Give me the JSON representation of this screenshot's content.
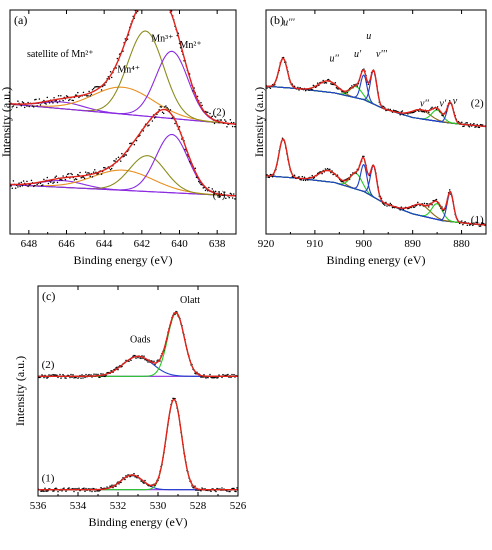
{
  "chart_data": [
    {
      "panel": "(a)",
      "type": "line",
      "xlabel": "Binding energy (eV)",
      "ylabel": "Intensity (a.u.)",
      "xlim": [
        649,
        637
      ],
      "xticks": [
        648,
        646,
        644,
        642,
        640,
        638
      ],
      "ylim": [
        0,
        1
      ],
      "grid": false,
      "sample_labels": [
        {
          "text": "(2)",
          "x": 637.9,
          "y": 0.53
        },
        {
          "text": "(1)",
          "x": 637.9,
          "y": 0.16
        }
      ],
      "annotations": [
        {
          "text": "satellite of Mn²⁺",
          "x": 648.1,
          "y": 0.79
        },
        {
          "text": "Mn⁴⁺",
          "x": 643.3,
          "y": 0.72
        },
        {
          "text": "Mn³⁺",
          "x": 641.5,
          "y": 0.86
        },
        {
          "text": "Mn²⁺",
          "x": 640.0,
          "y": 0.83
        }
      ],
      "stacks": [
        {
          "id": "(2)",
          "baseline_left": 0.58,
          "baseline_right": 0.49,
          "components": [
            {
              "role": "satellite",
              "center": 646.2,
              "width": 1.1,
              "height": 0.03,
              "color": "#8B2BE2"
            },
            {
              "role": "Mn4+",
              "center": 643.0,
              "width": 1.6,
              "height": 0.12,
              "color": "#E8901F"
            },
            {
              "role": "Mn3+",
              "center": 641.8,
              "width": 0.95,
              "height": 0.38,
              "color": "#8C8C1E"
            },
            {
              "role": "Mn2+",
              "center": 640.4,
              "width": 0.85,
              "height": 0.3,
              "color": "#8B2BE2"
            }
          ]
        },
        {
          "id": "(1)",
          "baseline_left": 0.22,
          "baseline_right": 0.17,
          "components": [
            {
              "role": "satellite",
              "center": 646.2,
              "width": 1.1,
              "height": 0.03,
              "color": "#8B2BE2"
            },
            {
              "role": "Mn4+",
              "center": 643.0,
              "width": 1.6,
              "height": 0.09,
              "color": "#E8901F"
            },
            {
              "role": "Mn3+",
              "center": 641.7,
              "width": 0.95,
              "height": 0.16,
              "color": "#8C8C1E"
            },
            {
              "role": "Mn2+",
              "center": 640.4,
              "width": 0.85,
              "height": 0.26,
              "color": "#8B2BE2"
            }
          ]
        }
      ],
      "colors": {
        "raw": "#000000",
        "envelope": "#E0221A",
        "background": "#8B2BE2"
      }
    },
    {
      "panel": "(b)",
      "type": "line",
      "xlabel": "Binding energy (eV)",
      "ylabel": "Intensity (a.u.)",
      "xlim": [
        920,
        875
      ],
      "xticks": [
        920,
        910,
        900,
        890,
        880
      ],
      "ylim": [
        0,
        1
      ],
      "grid": false,
      "sample_labels": [
        {
          "text": "(2)",
          "x": 876.8,
          "y": 0.57
        },
        {
          "text": "(1)",
          "x": 876.8,
          "y": 0.05
        }
      ],
      "annotations": [
        {
          "text": "u'''",
          "x": 916.5,
          "y": 0.93
        },
        {
          "text": "u''",
          "x": 907.0,
          "y": 0.77
        },
        {
          "text": "u'",
          "x": 902.0,
          "y": 0.79
        },
        {
          "text": "u",
          "x": 899.5,
          "y": 0.87
        },
        {
          "text": "v'''",
          "x": 897.5,
          "y": 0.79
        },
        {
          "text": "v''",
          "x": 888.5,
          "y": 0.57
        },
        {
          "text": "v'",
          "x": 884.5,
          "y": 0.57
        },
        {
          "text": "v",
          "x": 881.8,
          "y": 0.58
        }
      ],
      "stacks": [
        {
          "id": "(2)",
          "baseline": [
            [
              920,
              0.66
            ],
            [
              914,
              0.65
            ],
            [
              906,
              0.63
            ],
            [
              900,
              0.6
            ],
            [
              896,
              0.56
            ],
            [
              890,
              0.52
            ],
            [
              884,
              0.5
            ],
            [
              880,
              0.49
            ],
            [
              875,
              0.48
            ]
          ],
          "components": [
            {
              "role": "u'''",
              "center": 916.5,
              "width": 0.85,
              "height": 0.13,
              "color": "#2E8B2E"
            },
            {
              "role": "u''",
              "center": 907.3,
              "width": 1.9,
              "height": 0.05,
              "color": "#8B6914"
            },
            {
              "role": "u'",
              "center": 901.6,
              "width": 1.2,
              "height": 0.05,
              "color": "#22CC22"
            },
            {
              "role": "u",
              "center": 900.0,
              "width": 0.65,
              "height": 0.11,
              "color": "#1F3FCC"
            },
            {
              "role": "v'''",
              "center": 898.0,
              "width": 0.65,
              "height": 0.15,
              "color": "#1F3FCC"
            },
            {
              "role": "v''",
              "center": 888.4,
              "width": 1.9,
              "height": 0.04,
              "color": "#8B6914"
            },
            {
              "role": "v'",
              "center": 885.0,
              "width": 1.1,
              "height": 0.05,
              "color": "#22CC22"
            },
            {
              "role": "v",
              "center": 882.3,
              "width": 0.65,
              "height": 0.09,
              "color": "#1F3FCC"
            }
          ]
        },
        {
          "id": "(1)",
          "baseline": [
            [
              920,
              0.26
            ],
            [
              914,
              0.25
            ],
            [
              906,
              0.23
            ],
            [
              900,
              0.19
            ],
            [
              896,
              0.14
            ],
            [
              890,
              0.09
            ],
            [
              884,
              0.06
            ],
            [
              880,
              0.05
            ],
            [
              875,
              0.04
            ]
          ],
          "components": [
            {
              "role": "u'''",
              "center": 916.5,
              "width": 0.85,
              "height": 0.17,
              "color": "#2E8B2E"
            },
            {
              "role": "u''",
              "center": 907.3,
              "width": 1.9,
              "height": 0.05,
              "color": "#8B6914"
            },
            {
              "role": "u'",
              "center": 901.6,
              "width": 1.2,
              "height": 0.07,
              "color": "#22CC22"
            },
            {
              "role": "u",
              "center": 900.0,
              "width": 0.65,
              "height": 0.12,
              "color": "#1F3FCC"
            },
            {
              "role": "v'''",
              "center": 898.0,
              "width": 0.65,
              "height": 0.14,
              "color": "#1F3FCC"
            },
            {
              "role": "v''",
              "center": 888.4,
              "width": 1.9,
              "height": 0.05,
              "color": "#8B6914"
            },
            {
              "role": "v'",
              "center": 885.0,
              "width": 1.1,
              "height": 0.07,
              "color": "#22CC22"
            },
            {
              "role": "v",
              "center": 882.3,
              "width": 0.65,
              "height": 0.13,
              "color": "#1F3FCC"
            }
          ]
        }
      ],
      "colors": {
        "raw": "#000000",
        "envelope": "#E0221A",
        "background": "#7B2BC8"
      }
    },
    {
      "panel": "(c)",
      "type": "line",
      "xlabel": "Binding energy (eV)",
      "ylabel": "Intensity (a.u.)",
      "xlim": [
        536,
        526
      ],
      "xticks": [
        536,
        534,
        532,
        530,
        528,
        526
      ],
      "ylim": [
        0,
        1
      ],
      "grid": false,
      "sample_labels": [
        {
          "text": "(2)",
          "x": 535.5,
          "y": 0.61
        },
        {
          "text": "(1)",
          "x": 535.5,
          "y": 0.07
        }
      ],
      "annotations": [
        {
          "text": "Oads",
          "x": 531.4,
          "y": 0.73
        },
        {
          "text": "Olatt",
          "x": 528.9,
          "y": 0.92
        }
      ],
      "stacks": [
        {
          "id": "(2)",
          "baseline": 0.57,
          "components": [
            {
              "role": "Oads",
              "center": 531.0,
              "width": 0.75,
              "height": 0.095,
              "color": "#1F3FCC"
            },
            {
              "role": "Olatt",
              "center": 529.1,
              "width": 0.42,
              "height": 0.3,
              "color": "#22CC22"
            }
          ]
        },
        {
          "id": "(1)",
          "baseline": 0.03,
          "components": [
            {
              "role": "Oads",
              "center": 531.3,
              "width": 0.55,
              "height": 0.07,
              "color": "#1F3FCC"
            },
            {
              "role": "Olatt",
              "center": 529.2,
              "width": 0.38,
              "height": 0.43,
              "color": "#22CC22"
            }
          ]
        }
      ],
      "colors": {
        "raw": "#000000",
        "envelope": "#E0221A",
        "background": "#8B2BE2"
      }
    }
  ]
}
